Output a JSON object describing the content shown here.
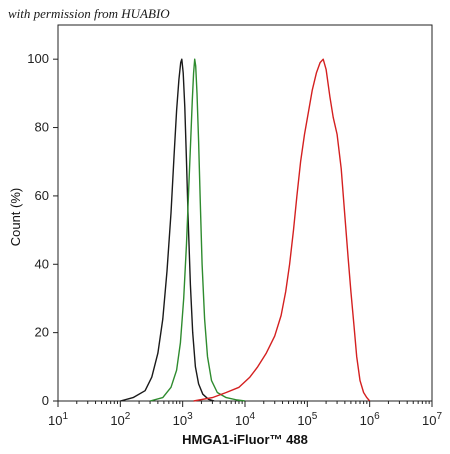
{
  "watermark": "with permission from HUABIO",
  "chart_data": {
    "type": "line",
    "title": "",
    "xlabel": "HMGA1-iFluor™ 488",
    "ylabel": "Count  (%)",
    "x_scale": "log10",
    "xlim": [
      10,
      10000000
    ],
    "ylim": [
      0,
      110
    ],
    "x_ticks": [
      10,
      100,
      1000,
      10000,
      100000,
      1000000,
      10000000
    ],
    "x_tick_labels": [
      {
        "base": "10",
        "exp": "1"
      },
      {
        "base": "10",
        "exp": "2"
      },
      {
        "base": "10",
        "exp": "3"
      },
      {
        "base": "10",
        "exp": "4"
      },
      {
        "base": "10",
        "exp": "5"
      },
      {
        "base": "10",
        "exp": "6"
      },
      {
        "base": "10",
        "exp": "7"
      }
    ],
    "y_ticks": [
      0,
      20,
      40,
      60,
      80,
      100
    ],
    "y_tick_labels": [
      "0",
      "20",
      "40",
      "60",
      "80",
      "100"
    ],
    "grid": false,
    "series": [
      {
        "color": "#1a1a1a",
        "points": [
          [
            100,
            0
          ],
          [
            160,
            1
          ],
          [
            250,
            3
          ],
          [
            320,
            7
          ],
          [
            400,
            14
          ],
          [
            480,
            24
          ],
          [
            560,
            38
          ],
          [
            650,
            55
          ],
          [
            730,
            72
          ],
          [
            800,
            85
          ],
          [
            870,
            94
          ],
          [
            930,
            99
          ],
          [
            970,
            100
          ],
          [
            1020,
            96
          ],
          [
            1080,
            86
          ],
          [
            1150,
            70
          ],
          [
            1230,
            52
          ],
          [
            1330,
            34
          ],
          [
            1450,
            20
          ],
          [
            1600,
            10
          ],
          [
            1800,
            5
          ],
          [
            2100,
            2
          ],
          [
            2600,
            0.5
          ],
          [
            3200,
            0
          ]
        ]
      },
      {
        "color": "#2e8b2e",
        "points": [
          [
            300,
            0
          ],
          [
            480,
            1
          ],
          [
            650,
            4
          ],
          [
            800,
            9
          ],
          [
            920,
            17
          ],
          [
            1040,
            30
          ],
          [
            1150,
            46
          ],
          [
            1250,
            62
          ],
          [
            1350,
            77
          ],
          [
            1430,
            88
          ],
          [
            1500,
            96
          ],
          [
            1560,
            100
          ],
          [
            1620,
            98
          ],
          [
            1700,
            90
          ],
          [
            1800,
            76
          ],
          [
            1920,
            58
          ],
          [
            2050,
            40
          ],
          [
            2250,
            24
          ],
          [
            2500,
            13
          ],
          [
            2900,
            6
          ],
          [
            3600,
            2.5
          ],
          [
            5000,
            1
          ],
          [
            7500,
            0.3
          ],
          [
            10000,
            0
          ]
        ]
      },
      {
        "color": "#d42020",
        "points": [
          [
            1500,
            0
          ],
          [
            3000,
            1
          ],
          [
            5000,
            2.5
          ],
          [
            8000,
            4
          ],
          [
            12000,
            7
          ],
          [
            16000,
            10
          ],
          [
            22000,
            14
          ],
          [
            30000,
            19
          ],
          [
            38000,
            25
          ],
          [
            45000,
            32
          ],
          [
            52000,
            40
          ],
          [
            60000,
            50
          ],
          [
            68000,
            60
          ],
          [
            78000,
            70
          ],
          [
            90000,
            78
          ],
          [
            105000,
            85
          ],
          [
            120000,
            91
          ],
          [
            140000,
            96
          ],
          [
            160000,
            99
          ],
          [
            180000,
            100
          ],
          [
            200000,
            97
          ],
          [
            230000,
            89
          ],
          [
            260000,
            83
          ],
          [
            300000,
            78
          ],
          [
            350000,
            68
          ],
          [
            400000,
            54
          ],
          [
            450000,
            42
          ],
          [
            500000,
            32
          ],
          [
            560000,
            22
          ],
          [
            620000,
            13
          ],
          [
            700000,
            6
          ],
          [
            800000,
            2.5
          ],
          [
            900000,
            1
          ],
          [
            1000000,
            0
          ]
        ]
      }
    ]
  }
}
